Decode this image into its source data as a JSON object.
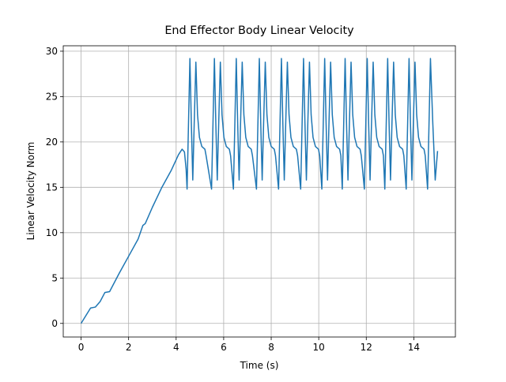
{
  "chart_data": {
    "type": "line",
    "title": "End Effector Body Linear Velocity",
    "x_label": "Time (s)",
    "y_label": "Linear Velocity Norm",
    "xlim": [
      -0.75,
      15.75
    ],
    "ylim": [
      -1.5,
      30.6
    ],
    "xticks": [
      0,
      2,
      4,
      6,
      8,
      10,
      12,
      14
    ],
    "yticks": [
      0,
      5,
      10,
      15,
      20,
      25,
      30
    ],
    "grid": true,
    "series": [
      {
        "color": "#1f77b4",
        "x": [
          0,
          0.4,
          0.6,
          0.8,
          1.0,
          1.2,
          1.6,
          2.0,
          2.4,
          2.6,
          2.7,
          3.0,
          3.4,
          3.8,
          4.1,
          4.25,
          4.35,
          4.42,
          4.46,
          4.52,
          4.58,
          4.64,
          4.7,
          4.76,
          4.83,
          4.9,
          4.98,
          5.08,
          5.21,
          5.26,
          5.49,
          5.55,
          5.61,
          5.67,
          5.73,
          5.79,
          5.86,
          5.93,
          6.01,
          6.11,
          6.24,
          6.29,
          6.41,
          6.47,
          6.53,
          6.59,
          6.65,
          6.71,
          6.78,
          6.85,
          6.93,
          7.03,
          7.16,
          7.21,
          7.38,
          7.44,
          7.5,
          7.56,
          7.62,
          7.68,
          7.75,
          7.82,
          7.9,
          8.0,
          8.13,
          8.18,
          8.31,
          8.37,
          8.43,
          8.49,
          8.55,
          8.61,
          8.68,
          8.75,
          8.83,
          8.93,
          9.06,
          9.11,
          9.24,
          9.3,
          9.36,
          9.42,
          9.48,
          9.54,
          9.61,
          9.68,
          9.76,
          9.86,
          9.99,
          10.04,
          10.13,
          10.19,
          10.25,
          10.31,
          10.37,
          10.43,
          10.5,
          10.57,
          10.65,
          10.75,
          10.88,
          10.93,
          10.99,
          11.05,
          11.11,
          11.17,
          11.23,
          11.29,
          11.36,
          11.43,
          11.51,
          11.61,
          11.74,
          11.79,
          11.92,
          11.98,
          12.04,
          12.1,
          12.16,
          12.22,
          12.29,
          12.36,
          12.44,
          12.54,
          12.67,
          12.72,
          12.78,
          12.84,
          12.9,
          12.96,
          13.02,
          13.08,
          13.15,
          13.22,
          13.3,
          13.4,
          13.53,
          13.58,
          13.68,
          13.74,
          13.8,
          13.86,
          13.92,
          13.98,
          14.05,
          14.12,
          14.2,
          14.3,
          14.43,
          14.48,
          14.58,
          14.64,
          14.7,
          14.8,
          14.9,
          15.0
        ],
        "values": [
          0,
          1.7,
          1.8,
          2.4,
          3.4,
          3.5,
          5.5,
          7.4,
          9.3,
          10.8,
          11.0,
          12.8,
          15.0,
          16.9,
          18.6,
          19.2,
          18.9,
          17.0,
          14.8,
          22,
          29.2,
          22,
          15.8,
          22,
          28.8,
          23,
          20.5,
          19.5,
          19.2,
          18.5,
          14.8,
          22,
          29.2,
          22,
          15.8,
          22,
          28.8,
          23,
          20.5,
          19.5,
          19.2,
          18.5,
          14.8,
          22,
          29.2,
          22,
          15.8,
          22,
          28.8,
          23,
          20.5,
          19.5,
          19.2,
          18.5,
          14.8,
          22,
          29.2,
          22,
          15.8,
          22,
          28.8,
          23,
          20.5,
          19.5,
          19.2,
          18.5,
          14.8,
          22,
          29.2,
          22,
          15.8,
          22,
          28.8,
          23,
          20.5,
          19.5,
          19.2,
          18.5,
          14.8,
          22,
          29.2,
          22,
          15.8,
          22,
          28.8,
          23,
          20.5,
          19.5,
          19.2,
          18.5,
          14.8,
          22,
          29.2,
          22,
          15.8,
          22,
          28.8,
          23,
          20.5,
          19.5,
          19.2,
          18.5,
          14.8,
          22,
          29.2,
          22,
          15.8,
          22,
          28.8,
          23,
          20.5,
          19.5,
          19.2,
          18.5,
          14.8,
          22,
          29.2,
          22,
          15.8,
          22,
          28.8,
          23,
          20.5,
          19.5,
          19.2,
          18.5,
          14.8,
          22,
          29.2,
          22,
          15.8,
          22,
          28.8,
          23,
          20.5,
          19.5,
          19.2,
          18.5,
          14.8,
          22,
          29.2,
          22,
          15.8,
          22,
          28.8,
          23,
          20.5,
          19.5,
          19.2,
          18.5,
          14.8,
          22,
          29.2,
          22,
          15.8,
          19.0
        ]
      }
    ]
  }
}
